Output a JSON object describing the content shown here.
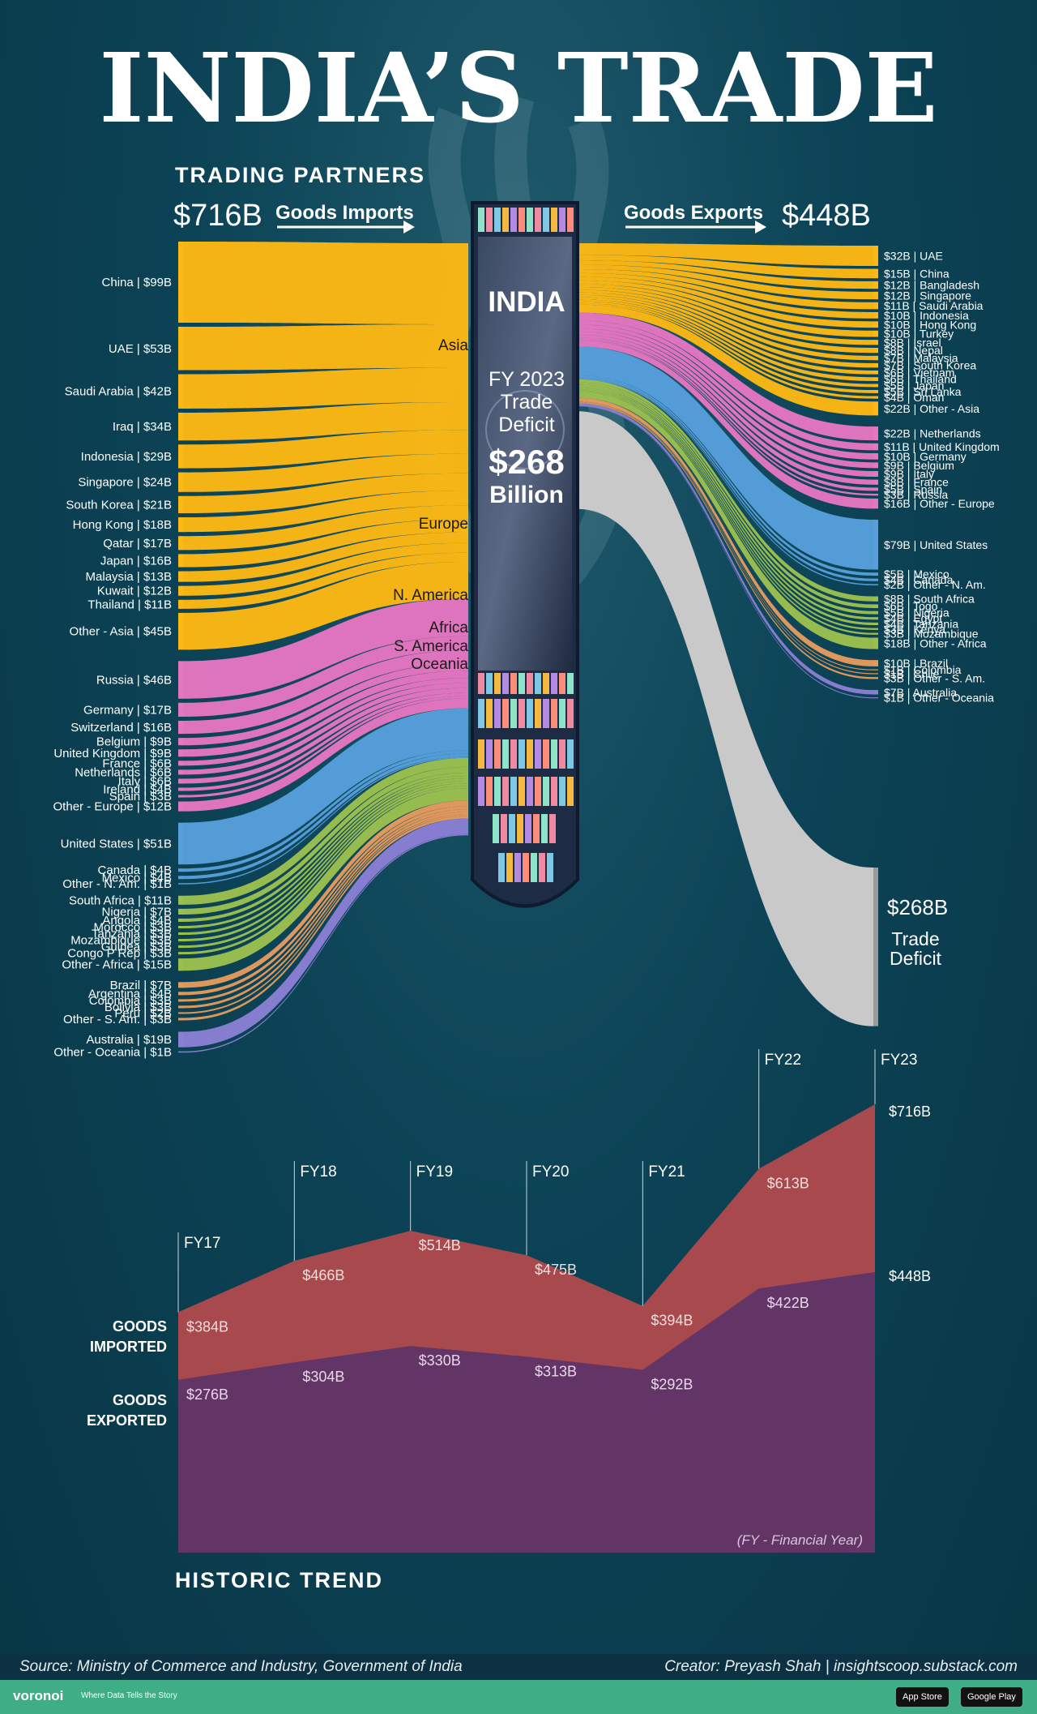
{
  "title": "INDIA’S TRADE",
  "trading_partners_heading": "TRADING PARTNERS",
  "historic_heading": "HISTORIC TREND",
  "imports_total": "$716B",
  "imports_label": "Goods Imports",
  "exports_total": "$448B",
  "exports_label": "Goods Exports",
  "center": {
    "country": "INDIA",
    "fy": "FY 2023",
    "line2": "Trade",
    "line3": "Deficit",
    "amount": "$268",
    "unit": "Billion"
  },
  "deficit_label": {
    "amount": "$268B",
    "line1": "Trade",
    "line2": "Deficit"
  },
  "region_labels": [
    "Asia",
    "Europe",
    "N. America",
    "Africa",
    "S. America",
    "Oceania"
  ],
  "colors": {
    "Asia": "#fdb813",
    "Europe": "#e576c0",
    "N. America": "#569fdb",
    "Africa": "#9bbf4e",
    "S. America": "#e59a5c",
    "Oceania": "#8b7fd4",
    "deficit": "#c9c9c9",
    "imports_area": "#a84a4d",
    "exports_area": "#633466"
  },
  "chart_data": [
    {
      "type": "sankey",
      "imports": [
        {
          "label": "China | $99B",
          "region": "Asia",
          "value": 99
        },
        {
          "label": "UAE | $53B",
          "region": "Asia",
          "value": 53
        },
        {
          "label": "Saudi Arabia | $42B",
          "region": "Asia",
          "value": 42
        },
        {
          "label": "Iraq | $34B",
          "region": "Asia",
          "value": 34
        },
        {
          "label": "Indonesia | $29B",
          "region": "Asia",
          "value": 29
        },
        {
          "label": "Singapore | $24B",
          "region": "Asia",
          "value": 24
        },
        {
          "label": "South Korea | $21B",
          "region": "Asia",
          "value": 21
        },
        {
          "label": "Hong Kong | $18B",
          "region": "Asia",
          "value": 18
        },
        {
          "label": "Qatar | $17B",
          "region": "Asia",
          "value": 17
        },
        {
          "label": "Japan | $16B",
          "region": "Asia",
          "value": 16
        },
        {
          "label": "Malaysia | $13B",
          "region": "Asia",
          "value": 13
        },
        {
          "label": "Kuwait | $12B",
          "region": "Asia",
          "value": 12
        },
        {
          "label": "Thailand | $11B",
          "region": "Asia",
          "value": 11
        },
        {
          "label": "Other - Asia | $45B",
          "region": "Asia",
          "value": 45
        },
        {
          "label": "Russia | $46B",
          "region": "Europe",
          "value": 46
        },
        {
          "label": "Germany | $17B",
          "region": "Europe",
          "value": 17
        },
        {
          "label": "Switzerland | $16B",
          "region": "Europe",
          "value": 16
        },
        {
          "label": "Belgium | $9B",
          "region": "Europe",
          "value": 9
        },
        {
          "label": "United Kingdom | $9B",
          "region": "Europe",
          "value": 9
        },
        {
          "label": "France | $6B",
          "region": "Europe",
          "value": 6
        },
        {
          "label": "Netherlands | $6B",
          "region": "Europe",
          "value": 6
        },
        {
          "label": "Italy | $6B",
          "region": "Europe",
          "value": 6
        },
        {
          "label": "Ireland | $4B",
          "region": "Europe",
          "value": 4
        },
        {
          "label": "Spain | $3B",
          "region": "Europe",
          "value": 3
        },
        {
          "label": "Other - Europe | $12B",
          "region": "Europe",
          "value": 12
        },
        {
          "label": "United States | $51B",
          "region": "N. America",
          "value": 51
        },
        {
          "label": "Canada | $4B",
          "region": "N. America",
          "value": 4
        },
        {
          "label": "Mexico | $4B",
          "region": "N. America",
          "value": 4
        },
        {
          "label": "Other - N. Am. | $1B",
          "region": "N. America",
          "value": 1
        },
        {
          "label": "South Africa | $11B",
          "region": "Africa",
          "value": 11
        },
        {
          "label": "Nigeria | $7B",
          "region": "Africa",
          "value": 7
        },
        {
          "label": "Angola | $4B",
          "region": "Africa",
          "value": 4
        },
        {
          "label": "Morocco | $3B",
          "region": "Africa",
          "value": 3
        },
        {
          "label": "Tanzania | $3B",
          "region": "Africa",
          "value": 3
        },
        {
          "label": "Mozambique | $3B",
          "region": "Africa",
          "value": 3
        },
        {
          "label": "Guinea | $3B",
          "region": "Africa",
          "value": 3
        },
        {
          "label": "Congo P Rep | $3B",
          "region": "Africa",
          "value": 3
        },
        {
          "label": "Other - Africa | $15B",
          "region": "Africa",
          "value": 15
        },
        {
          "label": "Brazil | $7B",
          "region": "S. America",
          "value": 7
        },
        {
          "label": "Argentina | $4B",
          "region": "S. America",
          "value": 4
        },
        {
          "label": "Colombia | $3B",
          "region": "S. America",
          "value": 3
        },
        {
          "label": "Bolivia | $3B",
          "region": "S. America",
          "value": 3
        },
        {
          "label": "Peru | $2B",
          "region": "S. America",
          "value": 2
        },
        {
          "label": "Other - S. Am. | $3B",
          "region": "S. America",
          "value": 3
        },
        {
          "label": "Australia | $19B",
          "region": "Oceania",
          "value": 19
        },
        {
          "label": "Other - Oceania | $1B",
          "region": "Oceania",
          "value": 1
        }
      ],
      "exports": [
        {
          "label": "$32B | UAE",
          "region": "Asia",
          "value": 32
        },
        {
          "label": "$15B | China",
          "region": "Asia",
          "value": 15
        },
        {
          "label": "$12B | Bangladesh",
          "region": "Asia",
          "value": 12
        },
        {
          "label": "$12B | Singapore",
          "region": "Asia",
          "value": 12
        },
        {
          "label": "$11B | Saudi Arabia",
          "region": "Asia",
          "value": 11
        },
        {
          "label": "$10B | Indonesia",
          "region": "Asia",
          "value": 10
        },
        {
          "label": "$10B | Hong Kong",
          "region": "Asia",
          "value": 10
        },
        {
          "label": "$10B | Turkey",
          "region": "Asia",
          "value": 10
        },
        {
          "label": "$8B | Israel",
          "region": "Asia",
          "value": 8
        },
        {
          "label": "$8B | Nepal",
          "region": "Asia",
          "value": 8
        },
        {
          "label": "$7B | Malaysia",
          "region": "Asia",
          "value": 7
        },
        {
          "label": "$7B | South Korea",
          "region": "Asia",
          "value": 7
        },
        {
          "label": "$6B | Vietnam",
          "region": "Asia",
          "value": 6
        },
        {
          "label": "$6B | Thailand",
          "region": "Asia",
          "value": 6
        },
        {
          "label": "$5B | Japan",
          "region": "Asia",
          "value": 5
        },
        {
          "label": "$5B | Sri Lanka",
          "region": "Asia",
          "value": 5
        },
        {
          "label": "$4B | Oman",
          "region": "Asia",
          "value": 4
        },
        {
          "label": "$22B | Other - Asia",
          "region": "Asia",
          "value": 22
        },
        {
          "label": "$22B | Netherlands",
          "region": "Europe",
          "value": 22
        },
        {
          "label": "$11B | United Kingdom",
          "region": "Europe",
          "value": 11
        },
        {
          "label": "$10B | Germany",
          "region": "Europe",
          "value": 10
        },
        {
          "label": "$9B | Belgium",
          "region": "Europe",
          "value": 9
        },
        {
          "label": "$9B | Italy",
          "region": "Europe",
          "value": 9
        },
        {
          "label": "$8B | France",
          "region": "Europe",
          "value": 8
        },
        {
          "label": "$5B | Spain",
          "region": "Europe",
          "value": 5
        },
        {
          "label": "$3B | Russia",
          "region": "Europe",
          "value": 3
        },
        {
          "label": "$16B | Other - Europe",
          "region": "Europe",
          "value": 16
        },
        {
          "label": "$79B | United States",
          "region": "N. America",
          "value": 79
        },
        {
          "label": "$5B | Mexico",
          "region": "N. America",
          "value": 5
        },
        {
          "label": "$4B | Canada",
          "region": "N. America",
          "value": 4
        },
        {
          "label": "$2B | Other - N. Am.",
          "region": "N. America",
          "value": 2
        },
        {
          "label": "$8B | South Africa",
          "region": "Africa",
          "value": 8
        },
        {
          "label": "$6B | Togo",
          "region": "Africa",
          "value": 6
        },
        {
          "label": "$5B | Nigeria",
          "region": "Africa",
          "value": 5
        },
        {
          "label": "$4B | Egypt",
          "region": "Africa",
          "value": 4
        },
        {
          "label": "$4B | Tanzania",
          "region": "Africa",
          "value": 4
        },
        {
          "label": "$3B | Kenya",
          "region": "Africa",
          "value": 3
        },
        {
          "label": "$3B | Mozambique",
          "region": "Africa",
          "value": 3
        },
        {
          "label": "$18B | Other - Africa",
          "region": "Africa",
          "value": 18
        },
        {
          "label": "$10B | Brazil",
          "region": "S. America",
          "value": 10
        },
        {
          "label": "$1B | Colombia",
          "region": "S. America",
          "value": 1
        },
        {
          "label": "$1B | Chile",
          "region": "S. America",
          "value": 1
        },
        {
          "label": "$3B | Other - S. Am.",
          "region": "S. America",
          "value": 3
        },
        {
          "label": "$7B | Australia",
          "region": "Oceania",
          "value": 7
        },
        {
          "label": "$1B | Other - Oceania",
          "region": "Oceania",
          "value": 1
        }
      ],
      "deficit": 268
    },
    {
      "type": "area",
      "title": "HISTORIC TREND",
      "categories": [
        "FY17",
        "FY18",
        "FY19",
        "FY20",
        "FY21",
        "FY22",
        "FY23"
      ],
      "series": [
        {
          "name": "GOODS IMPORTED",
          "values": [
            384,
            466,
            514,
            475,
            394,
            613,
            716
          ],
          "labels": [
            "$384B",
            "$466B",
            "$514B",
            "$475B",
            "$394B",
            "$613B",
            "$716B"
          ]
        },
        {
          "name": "GOODS EXPORTED",
          "values": [
            276,
            304,
            330,
            313,
            292,
            422,
            448
          ],
          "labels": [
            "$276B",
            "$304B",
            "$330B",
            "$313B",
            "$292B",
            "$422B",
            "$448B"
          ]
        }
      ],
      "note": "(FY - Financial Year)"
    }
  ],
  "series_labels": {
    "imported": [
      "GOODS",
      "IMPORTED"
    ],
    "exported": [
      "GOODS",
      "EXPORTED"
    ]
  },
  "footer": {
    "source": "Source: Ministry of Commerce and Industry, Government of India",
    "creator": "Creator: Preyash Shah | insightscoop.substack.com",
    "brand": "voronoi",
    "tagline": "Where Data Tells the Story",
    "appstore": "App Store",
    "googleplay": "Google Play"
  }
}
